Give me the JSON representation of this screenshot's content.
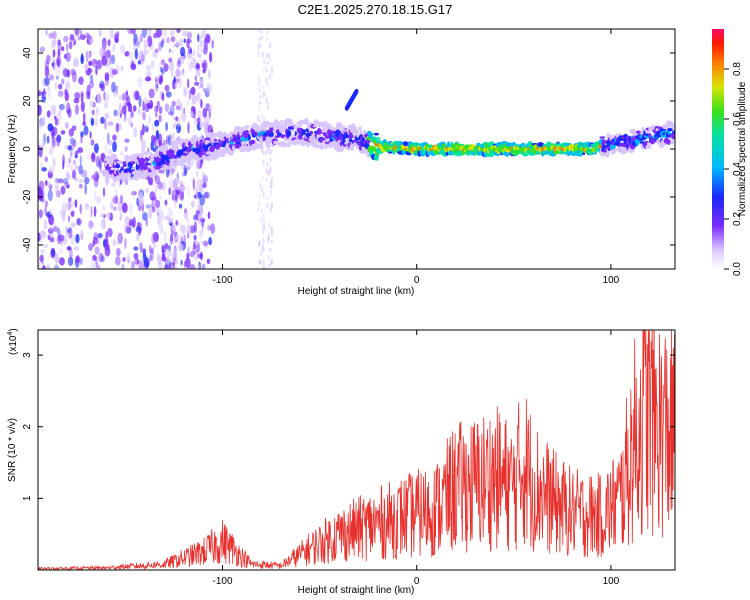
{
  "title": "C2E1.2025.270.18.15.G17",
  "colors": {
    "snr_line": "#e8302c",
    "frame": "#000000"
  },
  "chart_data": [
    {
      "type": "heatmap",
      "name": "spectrogram",
      "xlabel": "Height of straight line (km)",
      "ylabel": "Frequency (Hz)",
      "xlim": [
        -195,
        133
      ],
      "ylim": [
        -50,
        50
      ],
      "xticks": [
        -100,
        0,
        100
      ],
      "yticks": [
        -40,
        -20,
        0,
        20,
        40
      ],
      "colorbar": {
        "label": "Normalized spectral amplitude",
        "range": [
          0,
          0.96
        ],
        "ticks": [
          0.0,
          0.2,
          0.4,
          0.6,
          0.8
        ],
        "tick_labels": [
          "0.0",
          "0.2",
          "0.4",
          "0.6",
          "0.8"
        ],
        "colormap": "rainbow"
      },
      "ridge_center_hz": [
        [
          -150,
          -8
        ],
        [
          -135,
          -6
        ],
        [
          -120,
          -1
        ],
        [
          -100,
          2
        ],
        [
          -80,
          6
        ],
        [
          -60,
          7
        ],
        [
          -40,
          5
        ],
        [
          -30,
          4
        ],
        [
          -20,
          1
        ],
        [
          0,
          0
        ],
        [
          50,
          0
        ],
        [
          90,
          0
        ],
        [
          100,
          2
        ],
        [
          115,
          4
        ],
        [
          133,
          7
        ]
      ],
      "annotation_branch": {
        "x": [
          -36,
          -31
        ],
        "hz": [
          17,
          24
        ]
      }
    },
    {
      "type": "line",
      "name": "snr",
      "xlabel": "Height of straight line (km)",
      "ylabel": "SNR (10 * v/v)",
      "y_multiplier": "(x10^4)",
      "xlim": [
        -195,
        133
      ],
      "ylim": [
        0,
        3.35
      ],
      "xticks": [
        -100,
        0,
        100
      ],
      "yticks": [
        1,
        2,
        3
      ],
      "envelope": [
        [
          -195,
          0.02
        ],
        [
          -160,
          0.03
        ],
        [
          -130,
          0.08
        ],
        [
          -110,
          0.25
        ],
        [
          -100,
          0.4
        ],
        [
          -95,
          0.3
        ],
        [
          -85,
          0.08
        ],
        [
          -70,
          0.06
        ],
        [
          -55,
          0.3
        ],
        [
          -40,
          0.5
        ],
        [
          -20,
          0.65
        ],
        [
          -5,
          0.75
        ],
        [
          10,
          0.85
        ],
        [
          20,
          1.15
        ],
        [
          30,
          1.2
        ],
        [
          40,
          1.3
        ],
        [
          50,
          1.15
        ],
        [
          55,
          1.5
        ],
        [
          60,
          1.2
        ],
        [
          70,
          0.95
        ],
        [
          80,
          0.8
        ],
        [
          95,
          0.75
        ],
        [
          105,
          1.0
        ],
        [
          112,
          1.8
        ],
        [
          118,
          2.2
        ],
        [
          125,
          2.0
        ],
        [
          133,
          1.9
        ]
      ]
    }
  ]
}
